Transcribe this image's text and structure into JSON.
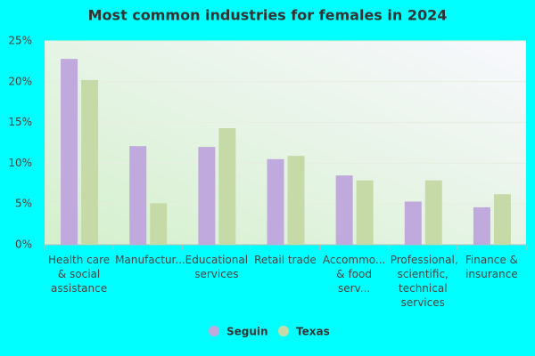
{
  "chart_data": {
    "type": "bar",
    "title": "Most common industries for females in 2024",
    "categories": [
      "Health care & social assistance",
      "Manufactur...",
      "Educational services",
      "Retail trade",
      "Accommo... & food serv...",
      "Professional, scientific, technical services",
      "Finance & insurance"
    ],
    "series": [
      {
        "name": "Seguin",
        "color": "#c0a9dc",
        "values": [
          22.8,
          12.1,
          12.0,
          10.5,
          8.5,
          5.3,
          4.6
        ]
      },
      {
        "name": "Texas",
        "color": "#c6daa8",
        "values": [
          20.2,
          5.1,
          14.3,
          10.9,
          7.9,
          7.9,
          6.2
        ]
      }
    ],
    "ylim": [
      0,
      25
    ],
    "yticks": [
      {
        "value": 0,
        "label": "0%"
      },
      {
        "value": 5,
        "label": "5%"
      },
      {
        "value": 10,
        "label": "10%"
      },
      {
        "value": 15,
        "label": "15%"
      },
      {
        "value": 20,
        "label": "20%"
      },
      {
        "value": 25,
        "label": "25%"
      }
    ],
    "grid": true
  }
}
